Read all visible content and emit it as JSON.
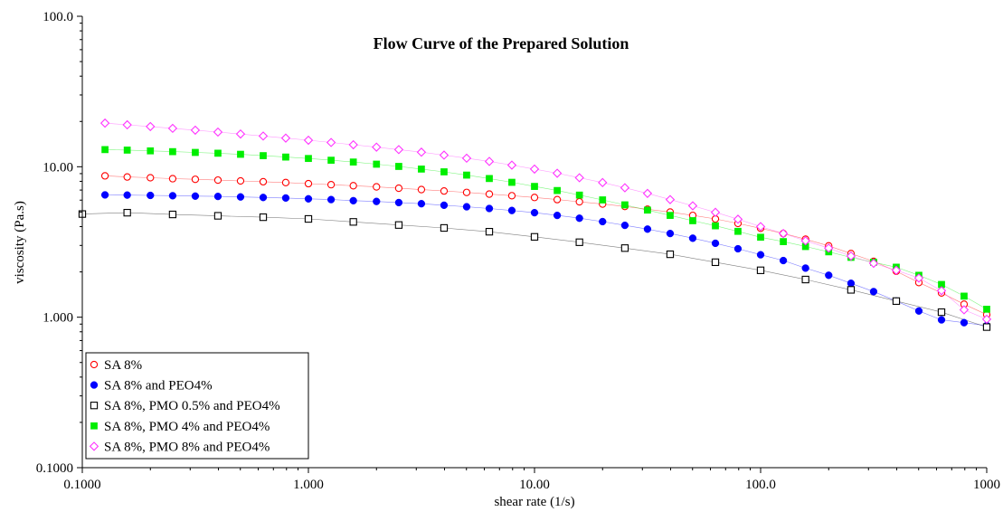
{
  "chart_data": {
    "type": "scatter",
    "title": "Flow Curve of the Prepared Solution",
    "xlabel": "shear rate (1/s)",
    "ylabel": "viscosity (Pa.s)",
    "x_scale": "log",
    "y_scale": "log",
    "xlim": [
      0.1,
      1000
    ],
    "ylim": [
      0.1,
      100
    ],
    "x_ticks": [
      0.1,
      1,
      10,
      100,
      1000
    ],
    "x_tick_labels": [
      "0.1000",
      "1.000",
      "10.00",
      "100.0",
      "1000"
    ],
    "y_ticks": [
      0.1,
      1,
      10,
      100
    ],
    "y_tick_labels": [
      "0.1000",
      "1.000",
      "10.00",
      "100.0"
    ],
    "grid": false,
    "legend_position": "bottom-left",
    "series": [
      {
        "name": "SA 8%",
        "color": "#ff0000",
        "marker": "circle-open",
        "x": [
          0.126,
          0.158,
          0.2,
          0.251,
          0.316,
          0.398,
          0.501,
          0.631,
          0.794,
          1,
          1.26,
          1.58,
          2,
          2.51,
          3.16,
          3.98,
          5.01,
          6.31,
          7.94,
          10,
          12.6,
          15.8,
          20,
          25.1,
          31.6,
          39.8,
          50.1,
          63.1,
          79.4,
          100,
          126,
          158,
          200,
          251,
          316,
          398,
          501,
          631,
          794,
          1000
        ],
        "y": [
          8.7,
          8.55,
          8.45,
          8.33,
          8.25,
          8.15,
          8.05,
          7.95,
          7.85,
          7.72,
          7.6,
          7.48,
          7.35,
          7.2,
          7.05,
          6.9,
          6.75,
          6.58,
          6.42,
          6.25,
          6.05,
          5.85,
          5.65,
          5.45,
          5.22,
          5.0,
          4.75,
          4.5,
          4.2,
          3.9,
          3.6,
          3.3,
          2.98,
          2.65,
          2.35,
          2.02,
          1.7,
          1.45,
          1.22,
          1.04
        ]
      },
      {
        "name": "SA 8% and PEO4%",
        "color": "#0000ff",
        "marker": "circle-filled",
        "x": [
          0.126,
          0.158,
          0.2,
          0.251,
          0.316,
          0.398,
          0.501,
          0.631,
          0.794,
          1,
          1.26,
          1.58,
          2,
          2.51,
          3.16,
          3.98,
          5.01,
          6.31,
          7.94,
          10,
          12.6,
          15.8,
          20,
          25.1,
          31.6,
          39.8,
          50.1,
          63.1,
          79.4,
          100,
          126,
          158,
          200,
          251,
          316,
          398,
          501,
          631,
          794,
          1000
        ],
        "y": [
          6.5,
          6.48,
          6.45,
          6.42,
          6.38,
          6.35,
          6.3,
          6.25,
          6.2,
          6.12,
          6.05,
          5.95,
          5.88,
          5.78,
          5.68,
          5.55,
          5.42,
          5.28,
          5.12,
          4.95,
          4.75,
          4.55,
          4.32,
          4.08,
          3.85,
          3.6,
          3.35,
          3.1,
          2.85,
          2.6,
          2.38,
          2.12,
          1.9,
          1.68,
          1.48,
          1.28,
          1.1,
          0.96,
          0.92,
          0.88
        ]
      },
      {
        "name": "SA 8%, PMO 0.5% and PEO4%",
        "color": "#000000",
        "marker": "square-open",
        "x": [
          0.1,
          0.158,
          0.251,
          0.398,
          0.631,
          1,
          1.58,
          2.51,
          3.98,
          6.31,
          10,
          15.8,
          25.1,
          39.8,
          63.1,
          100,
          158,
          251,
          398,
          631,
          1000
        ],
        "y": [
          4.85,
          4.95,
          4.82,
          4.72,
          4.62,
          4.5,
          4.3,
          4.1,
          3.92,
          3.7,
          3.42,
          3.15,
          2.88,
          2.62,
          2.32,
          2.05,
          1.78,
          1.52,
          1.28,
          1.08,
          0.86
        ]
      },
      {
        "name": "SA 8%, PMO 4% and PEO4%",
        "color": "#00ee00",
        "marker": "square-filled",
        "x": [
          0.126,
          0.158,
          0.2,
          0.251,
          0.316,
          0.398,
          0.501,
          0.631,
          0.794,
          1,
          1.26,
          1.58,
          2,
          2.51,
          3.16,
          3.98,
          5.01,
          6.31,
          7.94,
          10,
          12.6,
          15.8,
          20,
          25.1,
          31.6,
          39.8,
          50.1,
          63.1,
          79.4,
          100,
          126,
          158,
          200,
          251,
          316,
          398,
          501,
          631,
          794,
          1000
        ],
        "y": [
          13.0,
          12.9,
          12.75,
          12.6,
          12.45,
          12.3,
          12.1,
          11.85,
          11.6,
          11.35,
          11.05,
          10.75,
          10.4,
          10.05,
          9.65,
          9.25,
          8.8,
          8.35,
          7.88,
          7.4,
          6.95,
          6.48,
          6.02,
          5.58,
          5.15,
          4.75,
          4.38,
          4.05,
          3.72,
          3.4,
          3.18,
          2.95,
          2.72,
          2.5,
          2.32,
          2.15,
          1.9,
          1.65,
          1.38,
          1.13
        ]
      },
      {
        "name": "SA 8%, PMO 8% and PEO4%",
        "color": "#ff33ff",
        "marker": "diamond-open",
        "x": [
          0.126,
          0.158,
          0.2,
          0.251,
          0.316,
          0.398,
          0.501,
          0.631,
          0.794,
          1,
          1.26,
          1.58,
          2,
          2.51,
          3.16,
          3.98,
          5.01,
          6.31,
          7.94,
          10,
          12.6,
          15.8,
          20,
          25.1,
          31.6,
          39.8,
          50.1,
          63.1,
          79.4,
          100,
          126,
          158,
          200,
          251,
          316,
          398,
          501,
          631,
          794,
          1000
        ],
        "y": [
          19.5,
          19.0,
          18.5,
          18.0,
          17.5,
          17.0,
          16.5,
          16.0,
          15.5,
          15.0,
          14.5,
          14.0,
          13.5,
          13.0,
          12.5,
          11.95,
          11.4,
          10.85,
          10.25,
          9.65,
          9.05,
          8.45,
          7.85,
          7.25,
          6.65,
          6.05,
          5.5,
          4.98,
          4.48,
          4.0,
          3.6,
          3.22,
          2.88,
          2.55,
          2.28,
          2.05,
          1.82,
          1.5,
          1.12,
          0.97
        ]
      }
    ]
  }
}
